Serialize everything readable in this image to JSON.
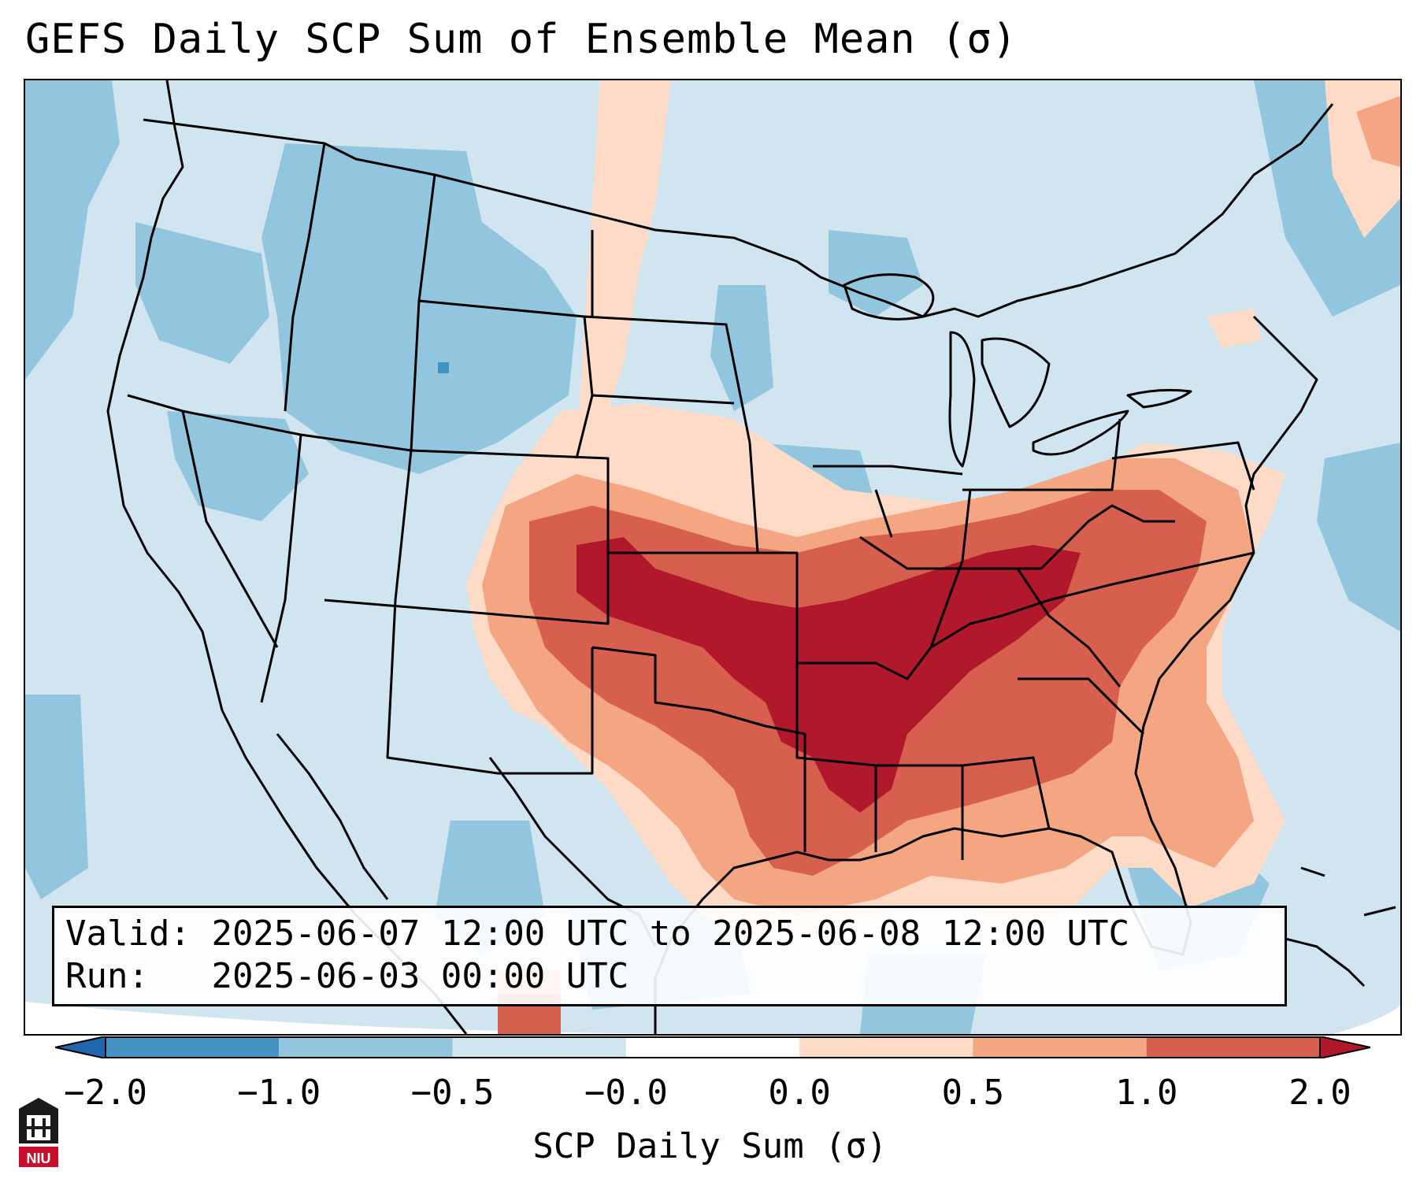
{
  "title": "GEFS Daily SCP Sum of Ensemble Mean (σ)",
  "info": {
    "valid_label": "Valid:",
    "valid_value": "2025-06-07 12:00 UTC to 2025-06-08 12:00 UTC",
    "run_label": "Run:",
    "run_value": "2025-06-03 00:00 UTC"
  },
  "colorbar": {
    "label": "SCP Daily Sum (σ)",
    "ticks": [
      "−2.0",
      "−1.0",
      "−0.5",
      "−0.0",
      "0.0",
      "0.5",
      "1.0",
      "2.0"
    ],
    "bins": [
      {
        "range": "< -2.0",
        "color": "#2166ac"
      },
      {
        "range": "-2.0 to -1.0",
        "color": "#4393c3"
      },
      {
        "range": "-1.0 to -0.5",
        "color": "#92c5de"
      },
      {
        "range": "-0.5 to -0.0",
        "color": "#d1e5f0"
      },
      {
        "range": "-0.0 to 0.0",
        "color": "#ffffff"
      },
      {
        "range": "0.0 to 0.5",
        "color": "#fddbc7"
      },
      {
        "range": "0.5 to 1.0",
        "color": "#f4a582"
      },
      {
        "range": "1.0 to 2.0",
        "color": "#d6604d"
      },
      {
        "range": "> 2.0",
        "color": "#b2182b"
      }
    ]
  },
  "logo_text": "NIU",
  "colors": {
    "outline": "#000000",
    "bg_light_blue": "#d1e5f0",
    "mid_blue": "#92c5de",
    "light_red": "#fddbc7",
    "salmon": "#f4a582",
    "red": "#d6604d",
    "dark_red": "#b2182b"
  }
}
